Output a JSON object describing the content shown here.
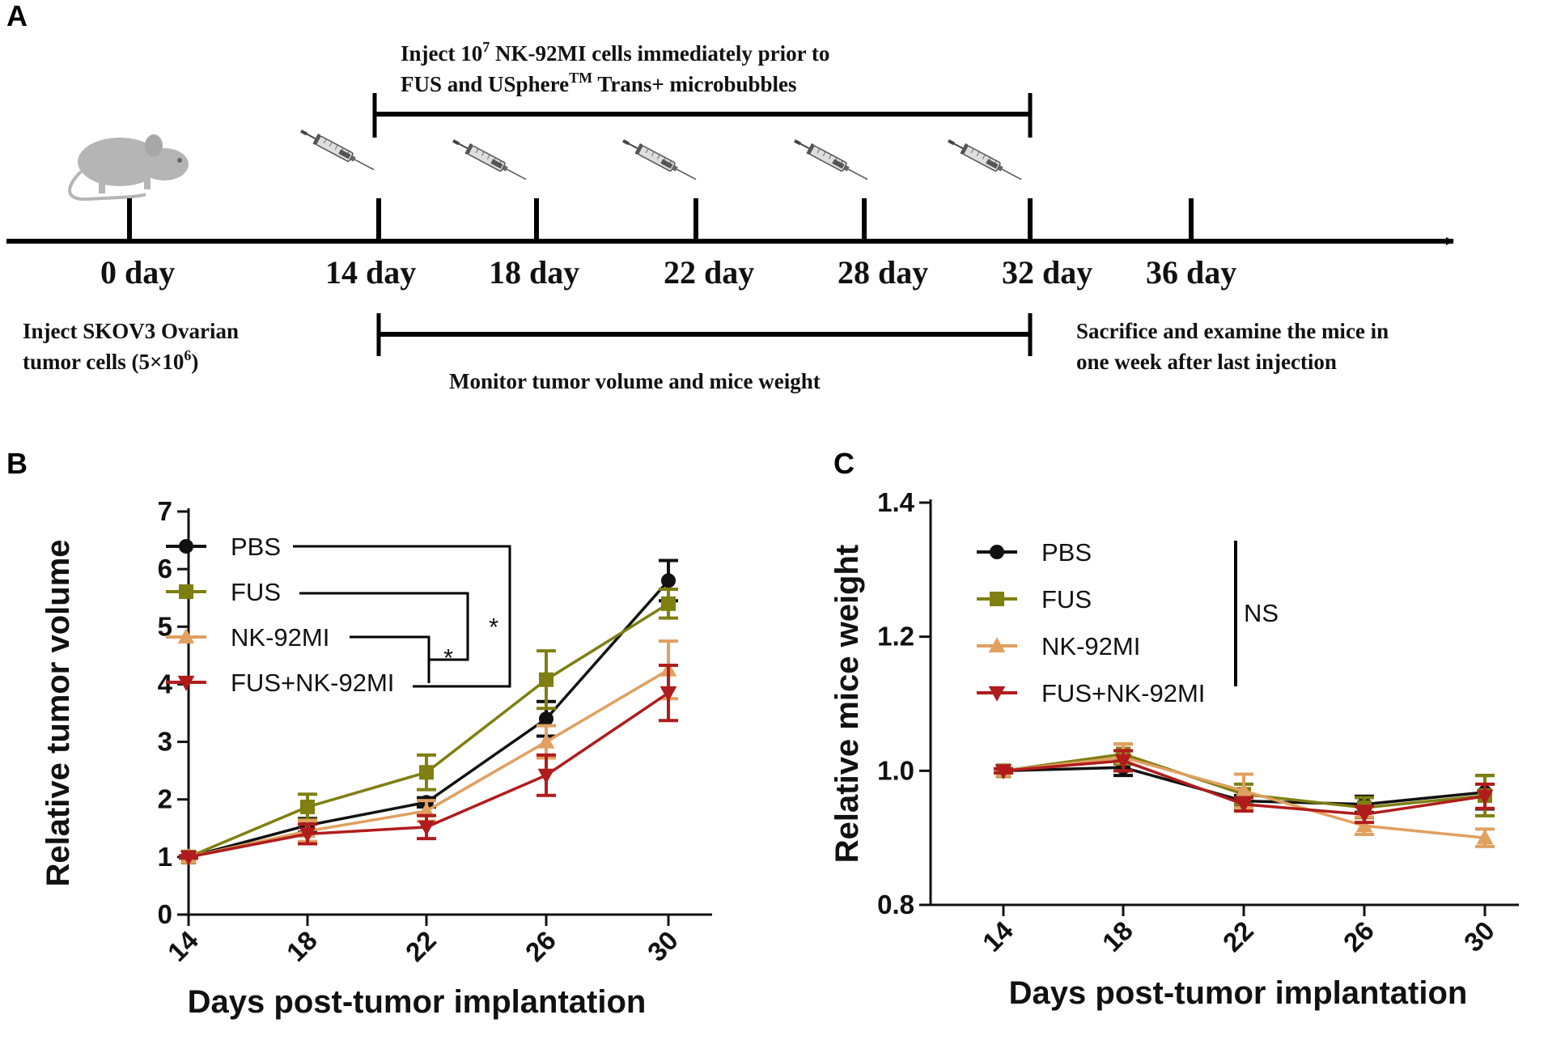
{
  "panels": {
    "a": "A",
    "b": "B",
    "c": "C"
  },
  "timeline": {
    "days": [
      "0 day",
      "14 day",
      "18 day",
      "22 day",
      "28 day",
      "32 day",
      "36 day"
    ],
    "top_note": {
      "line1_pre": "Inject 10",
      "line1_sup": "7",
      "line1_post": " NK-92MI cells immediately prior to",
      "line2_pre": "FUS and USphere",
      "line2_sup": "TM",
      "line2_post": " Trans+ microbubbles"
    },
    "left_note": {
      "line1": "Inject SKOV3 Ovarian",
      "line2_pre": "tumor cells (5×10",
      "line2_sup": "6",
      "line2_post": ")"
    },
    "middle_note": "Monitor tumor volume and mice weight",
    "right_note": {
      "line1": "Sacrifice and examine the mice in",
      "line2": "one week after last injection"
    },
    "icons": {
      "animal": "mouse-icon",
      "tool": "syringe-icon"
    }
  },
  "chart_data": [
    {
      "panel": "B",
      "type": "line",
      "xlabel": "Days post-tumor implantation",
      "ylabel": "Relative tumor volume",
      "categories": [
        "14",
        "18",
        "22",
        "26",
        "30"
      ],
      "ylim": [
        0,
        7
      ],
      "yticks": [
        "0",
        "1",
        "2",
        "3",
        "4",
        "5",
        "6",
        "7"
      ],
      "series": [
        {
          "name": "PBS",
          "color": "#111111",
          "marker": "circle",
          "values": [
            1.0,
            1.55,
            1.95,
            3.4,
            5.8
          ],
          "errors": [
            0.02,
            0.12,
            0.08,
            0.3,
            0.35
          ]
        },
        {
          "name": "FUS",
          "color": "#7f7f12",
          "marker": "square",
          "values": [
            1.0,
            1.87,
            2.47,
            4.08,
            5.4
          ],
          "errors": [
            0.02,
            0.22,
            0.3,
            0.5,
            0.25
          ]
        },
        {
          "name": "NK-92MI",
          "color": "#e0a060",
          "marker": "triangle-up",
          "values": [
            1.0,
            1.45,
            1.8,
            3.0,
            4.25
          ],
          "errors": [
            0.02,
            0.18,
            0.18,
            0.28,
            0.5
          ]
        },
        {
          "name": "FUS+NK-92MI",
          "color": "#b01c1c",
          "marker": "triangle-down",
          "values": [
            1.0,
            1.4,
            1.52,
            2.42,
            3.85
          ],
          "errors": [
            0.02,
            0.17,
            0.2,
            0.35,
            0.48
          ]
        }
      ],
      "annotations": [
        "*",
        "*"
      ]
    },
    {
      "panel": "C",
      "type": "line",
      "xlabel": "Days post-tumor implantation",
      "ylabel": "Relative mice weight",
      "categories": [
        "14",
        "18",
        "22",
        "26",
        "30"
      ],
      "ylim": [
        0.8,
        1.4
      ],
      "yticks": [
        "0.8",
        "1.0",
        "1.2",
        "1.4"
      ],
      "series": [
        {
          "name": "PBS",
          "color": "#111111",
          "marker": "circle",
          "values": [
            1.0,
            1.005,
            0.955,
            0.95,
            0.968
          ],
          "errors": [
            0.003,
            0.012,
            0.008,
            0.012,
            0.025
          ]
        },
        {
          "name": "FUS",
          "color": "#7f7f12",
          "marker": "square",
          "values": [
            1.0,
            1.025,
            0.965,
            0.945,
            0.963
          ],
          "errors": [
            0.003,
            0.015,
            0.015,
            0.015,
            0.03
          ]
        },
        {
          "name": "NK-92MI",
          "color": "#e0a060",
          "marker": "triangle-up",
          "values": [
            1.0,
            1.02,
            0.97,
            0.918,
            0.9
          ],
          "errors": [
            0.003,
            0.02,
            0.025,
            0.013,
            0.013
          ]
        },
        {
          "name": "FUS+NK-92MI",
          "color": "#b01c1c",
          "marker": "triangle-down",
          "values": [
            1.0,
            1.015,
            0.95,
            0.935,
            0.962
          ],
          "errors": [
            0.003,
            0.015,
            0.01,
            0.012,
            0.018
          ]
        }
      ],
      "annotations": [
        "NS"
      ]
    }
  ]
}
